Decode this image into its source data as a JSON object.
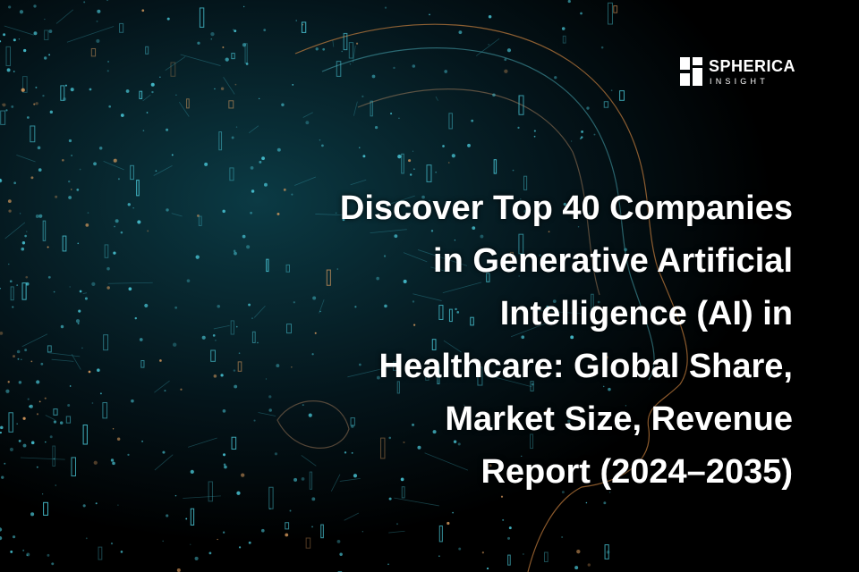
{
  "logo": {
    "name": "SPHERICA",
    "tagline": "INSIGHT"
  },
  "headline": {
    "lines": [
      "Discover Top 40 Companies",
      "in Generative Artificial",
      "Intelligence (AI) in",
      "Healthcare: Global Share,",
      "Market Size, Revenue",
      "Report (2024–2035)"
    ]
  }
}
